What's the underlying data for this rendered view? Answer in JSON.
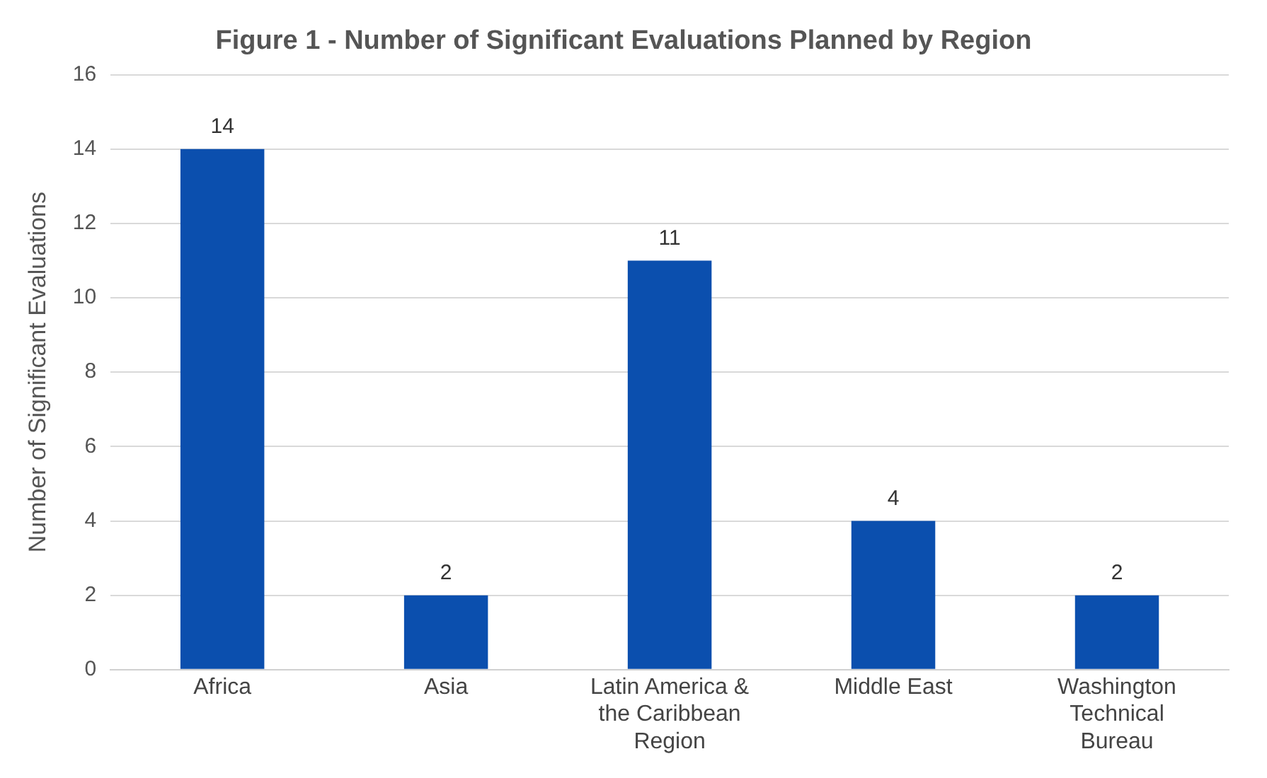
{
  "chart_data": {
    "type": "bar",
    "title": "Figure 1 - Number of Significant Evaluations Planned by Region",
    "ylabel": "Number of Significant Evaluations",
    "categories": [
      "Africa",
      "Asia",
      "Latin America & the Caribbean Region",
      "Middle East",
      "Washington Technical Bureau"
    ],
    "values": [
      14,
      2,
      11,
      4,
      2
    ],
    "color": "#0b4fae",
    "ylim": [
      0,
      16
    ],
    "yticks": [
      0,
      2,
      4,
      6,
      8,
      10,
      12,
      14,
      16
    ],
    "grid": "y",
    "data_labels": true,
    "legend": false
  }
}
